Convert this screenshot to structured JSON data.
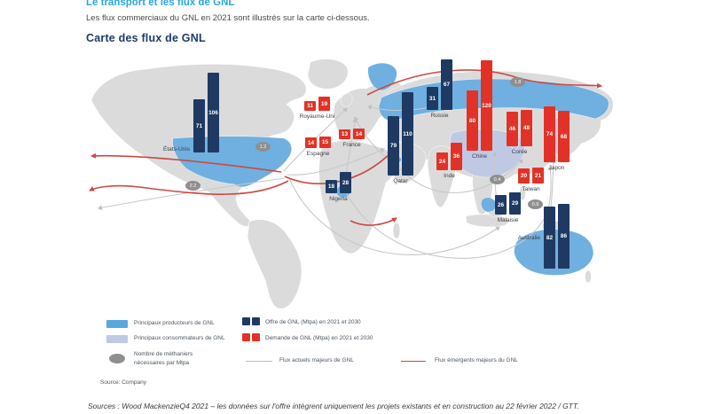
{
  "page": {
    "section_title": "Le transport et les flux de GNL",
    "intro": "Les flux commerciaux du GNL en 2021 sont illustrés sur la carte ci-dessous.",
    "map_title": "Carte des flux de GNL",
    "source_note": "Source: Company",
    "footer": "Sources : Wood MackenzieQ4 2021 – les données sur l'offre intègrent uniquement les projets existants et en construction au 22 février 2022 / GTT."
  },
  "colors": {
    "accent_title": "#2ba7dc",
    "heading": "#1c3c69",
    "supply_bar": "#1e3a63",
    "demand_bar": "#e23227",
    "producers_fill": "#6fb0e0",
    "consumers_fill": "#c0c9e4",
    "land": "#dbdbdb",
    "flow_current": "#c8c8c8",
    "flow_emerging": "#cb4a42",
    "carrier_oval": "#8f8f8f"
  },
  "legend": {
    "producers": "Principaux producteurs de GNL",
    "consumers": "Principaux consommateurs de GNL",
    "carriers_l1": "Nombre de méthaniers",
    "carriers_l2": "nécessaires par Mtpa",
    "supply": "Offre de GNL (Mtpa) en 2021 et 2030",
    "demand": "Demande de GNL (Mtpa) en 2021 et 2030",
    "flow_current": "Flux actuels majeurs de GNL",
    "flow_emerging": "Flux émergents majeurs du GNL"
  },
  "chart_data": {
    "type": "bar",
    "title": "Carte des flux de GNL",
    "unit": "Mtpa",
    "years": [
      2021,
      2030
    ],
    "legend_position": "bottom",
    "countries": [
      {
        "id": "etats-unis",
        "label": "États-Unis",
        "role": "supply",
        "values": [
          71,
          106
        ]
      },
      {
        "id": "royaume-uni",
        "label": "Royaume-Uni",
        "role": "demand",
        "values": [
          11,
          19
        ]
      },
      {
        "id": "espagne",
        "label": "Espagne",
        "role": "demand",
        "values": [
          14,
          15
        ]
      },
      {
        "id": "france",
        "label": "France",
        "role": "demand",
        "values": [
          13,
          14
        ]
      },
      {
        "id": "nigeria",
        "label": "Nigeria",
        "role": "supply",
        "values": [
          18,
          28
        ]
      },
      {
        "id": "qatar",
        "label": "Qatar",
        "role": "supply",
        "values": [
          79,
          110
        ]
      },
      {
        "id": "russie",
        "label": "Russie",
        "role": "supply",
        "values": [
          31,
          67
        ]
      },
      {
        "id": "inde",
        "label": "Inde",
        "role": "demand",
        "values": [
          24,
          36
        ]
      },
      {
        "id": "chine",
        "label": "Chine",
        "role": "demand",
        "values": [
          80,
          120
        ]
      },
      {
        "id": "coree",
        "label": "Corée",
        "role": "demand",
        "values": [
          46,
          48
        ]
      },
      {
        "id": "japon",
        "label": "Japon",
        "role": "demand",
        "values": [
          74,
          68
        ]
      },
      {
        "id": "taiwan",
        "label": "Taiwan",
        "role": "demand",
        "values": [
          20,
          21
        ]
      },
      {
        "id": "malaisie",
        "label": "Malaisie",
        "role": "supply",
        "values": [
          26,
          29
        ]
      },
      {
        "id": "australie",
        "label": "Australie",
        "role": "supply",
        "values": [
          82,
          86
        ]
      }
    ],
    "carriers_per_mtpa": [
      {
        "id": "atlantique-us-europe",
        "value": "1.2"
      },
      {
        "id": "pacifique-us-asie",
        "value": "2.2"
      },
      {
        "id": "arctique-russie-asie",
        "value": "1.8"
      },
      {
        "id": "asie-chine",
        "value": "0.4"
      },
      {
        "id": "australie-asie",
        "value": "0.9"
      }
    ]
  }
}
